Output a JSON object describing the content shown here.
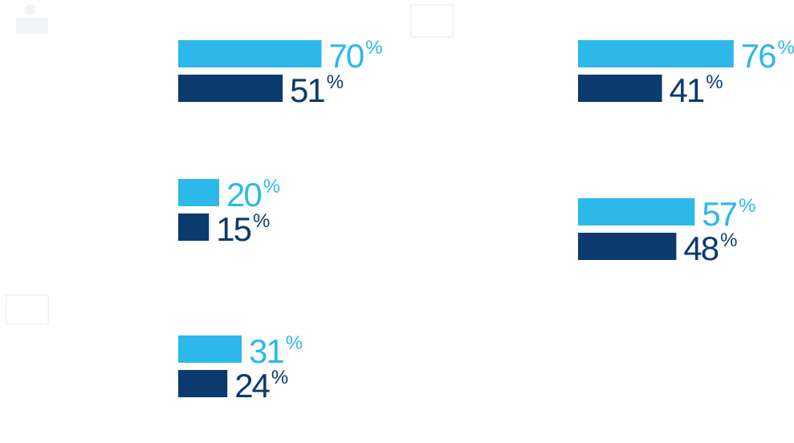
{
  "chart_data": [
    {
      "type": "bar",
      "values": [
        70,
        51
      ],
      "value_labels": [
        "70%",
        "51%"
      ],
      "colors": [
        "#2db8ea",
        "#0b3a6e"
      ]
    },
    {
      "type": "bar",
      "values": [
        76,
        41
      ],
      "value_labels": [
        "76%",
        "41%"
      ],
      "colors": [
        "#2db8ea",
        "#0b3a6e"
      ]
    },
    {
      "type": "bar",
      "values": [
        20,
        15
      ],
      "value_labels": [
        "20%",
        "15%"
      ],
      "colors": [
        "#2db8ea",
        "#0b3a6e"
      ]
    },
    {
      "type": "bar",
      "values": [
        57,
        48
      ],
      "value_labels": [
        "57%",
        "48%"
      ],
      "colors": [
        "#2db8ea",
        "#0b3a6e"
      ]
    },
    {
      "type": "bar",
      "values": [
        31,
        24
      ],
      "value_labels": [
        "31%",
        "24%"
      ],
      "colors": [
        "#2db8ea",
        "#0b3a6e"
      ]
    }
  ]
}
